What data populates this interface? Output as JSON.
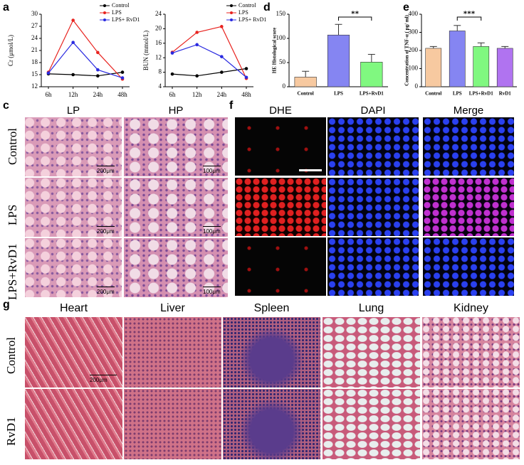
{
  "panel_labels": [
    "a",
    "d",
    "e",
    "c",
    "f",
    "g"
  ],
  "chart_data": [
    {
      "type": "line",
      "y_label": "Cr (μmol/L)",
      "categories": [
        "6h",
        "12h",
        "24h",
        "48h"
      ],
      "ylim": [
        12,
        30
      ],
      "yticks": [
        12,
        15,
        18,
        21,
        24,
        27,
        30
      ],
      "series": [
        {
          "name": "Control",
          "color": "#000000",
          "values": [
            15.2,
            15.0,
            14.7,
            15.6
          ]
        },
        {
          "name": "LPS",
          "color": "#e8231f",
          "values": [
            15.6,
            28.5,
            20.5,
            13.9
          ]
        },
        {
          "name": "LPS+ RvD1",
          "color": "#2a2ae0",
          "values": [
            15.4,
            23.0,
            16.2,
            14.2
          ]
        }
      ]
    },
    {
      "type": "line",
      "y_label": "BUN (mmol/L)",
      "categories": [
        "6h",
        "12h",
        "24h",
        "48h"
      ],
      "ylim": [
        4,
        24
      ],
      "yticks": [
        4,
        8,
        12,
        16,
        20,
        24
      ],
      "series": [
        {
          "name": "Control",
          "color": "#000000",
          "values": [
            7.5,
            7.0,
            8.0,
            9.0
          ]
        },
        {
          "name": "LPS",
          "color": "#e8231f",
          "values": [
            13.5,
            19.0,
            20.6,
            6.3
          ]
        },
        {
          "name": "LPS+ RvD1",
          "color": "#2a2ae0",
          "values": [
            13.3,
            15.6,
            12.3,
            6.6
          ]
        }
      ]
    },
    {
      "type": "bar",
      "y_label": "HE Histological score",
      "categories": [
        "Control",
        "LPS",
        "LPS+RvD1"
      ],
      "values": [
        20,
        107,
        51
      ],
      "errors": [
        12,
        22,
        16
      ],
      "colors": [
        "#f7c9a0",
        "#8585f2",
        "#80f880"
      ],
      "ylim": [
        0,
        150
      ],
      "yticks": [
        0,
        50,
        100,
        150
      ],
      "annotation": "**"
    },
    {
      "type": "bar",
      "y_label": "Concentration of TNF-α ( pg/ ml)",
      "categories": [
        "Control",
        "LPS",
        "LPS+RvD1",
        "RvD1"
      ],
      "values": [
        212,
        308,
        222,
        212
      ],
      "errors": [
        10,
        30,
        20,
        10
      ],
      "colors": [
        "#f7c9a0",
        "#8585f2",
        "#80f880",
        "#b073f0"
      ],
      "ylim": [
        0,
        400
      ],
      "yticks": [
        0,
        100,
        200,
        300,
        400
      ],
      "annotation": "***"
    }
  ],
  "panel_c": {
    "columns": [
      "LP",
      "HP"
    ],
    "rows": [
      "Control",
      "LPS",
      "LPS+RvD1"
    ],
    "scale_labels": [
      [
        "200μm",
        "100μm"
      ],
      [
        "200μm",
        "100μm"
      ],
      [
        "200μm",
        "100μm"
      ]
    ]
  },
  "panel_f": {
    "columns": [
      "DHE",
      "DAPI",
      "Merge"
    ]
  },
  "panel_g": {
    "columns": [
      "Heart",
      "Liver",
      "Spleen",
      "Lung",
      "Kidney"
    ],
    "rows": [
      "Control",
      "RvD1"
    ],
    "scale_label": "200μm"
  }
}
